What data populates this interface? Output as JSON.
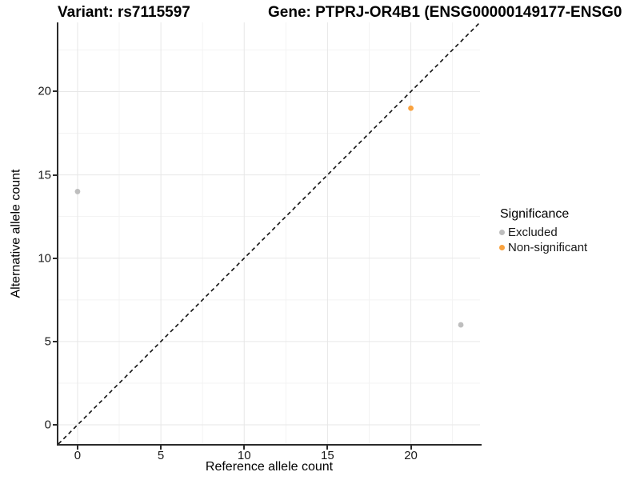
{
  "titles": {
    "variant": "Variant: rs7115597",
    "gene": "Gene: PTPRJ-OR4B1 (ENSG00000149177-ENSG0"
  },
  "chart_data": {
    "type": "scatter",
    "title_left": "Variant: rs7115597",
    "title_right": "Gene: PTPRJ-OR4B1 (ENSG00000149177-ENSG0",
    "xlabel": "Reference allele count",
    "ylabel": "Alternative allele count",
    "xlim": [
      -1.15,
      24.15
    ],
    "ylim": [
      -1.15,
      24.15
    ],
    "xticks": [
      0,
      5,
      10,
      15,
      20
    ],
    "yticks": [
      0,
      5,
      10,
      15,
      20
    ],
    "x_minor_ticks": [
      2.5,
      7.5,
      12.5,
      17.5,
      22.5
    ],
    "y_minor_ticks": [
      2.5,
      7.5,
      12.5,
      17.5,
      22.5
    ],
    "grid": true,
    "identity_line": {
      "slope": 1,
      "intercept": 0,
      "style": "dashed",
      "color": "#111111"
    },
    "series": [
      {
        "name": "Excluded",
        "color": "#BEBEBE",
        "points": [
          [
            0,
            14
          ],
          [
            23,
            6
          ]
        ]
      },
      {
        "name": "Non-significant",
        "color": "#F9A23F",
        "points": [
          [
            20,
            19
          ]
        ]
      }
    ],
    "legend": {
      "title": "Significance",
      "position": "right"
    }
  },
  "colors": {
    "grid_major": "#E7E7E7",
    "grid_minor": "#F3F3F3",
    "axis_line": "#2b2b2b",
    "excluded": "#BEBEBE",
    "non_significant": "#F9A23F"
  }
}
